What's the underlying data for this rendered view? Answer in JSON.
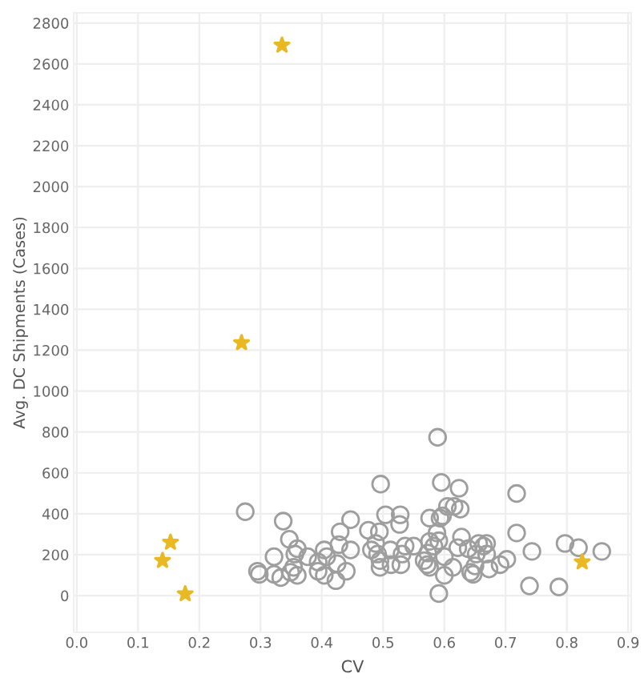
{
  "chart_data": {
    "type": "scatter",
    "xlabel": "CV",
    "ylabel": "Avg. DC Shipments (Cases)",
    "xlim": [
      -0.005,
      0.905
    ],
    "ylim": [
      -180,
      2850
    ],
    "xticks": [
      {
        "value": 0,
        "label": "0.0"
      },
      0.1,
      0.2,
      0.3,
      0.4,
      0.5,
      0.6,
      0.7,
      0.8,
      0.9
    ],
    "yticks": [
      0,
      200,
      400,
      600,
      800,
      1000,
      1200,
      1400,
      1600,
      1800,
      2000,
      2200,
      2400,
      2600,
      2800
    ],
    "grid": true,
    "series": [
      {
        "color": "#9e9e9e",
        "marker": "circle",
        "x": [
          0.275,
          0.295,
          0.298,
          0.322,
          0.322,
          0.333,
          0.337,
          0.347,
          0.356,
          0.36,
          0.354,
          0.36,
          0.349,
          0.377,
          0.394,
          0.394,
          0.404,
          0.408,
          0.404,
          0.423,
          0.425,
          0.43,
          0.428,
          0.44,
          0.447,
          0.447,
          0.476,
          0.481,
          0.494,
          0.488,
          0.491,
          0.495,
          0.495,
          0.496,
          0.504,
          0.512,
          0.513,
          0.528,
          0.527,
          0.529,
          0.531,
          0.536,
          0.55,
          0.567,
          0.572,
          0.573,
          0.576,
          0.576,
          0.576,
          0.583,
          0.588,
          0.591,
          0.589,
          0.595,
          0.593,
          0.591,
          0.597,
          0.6,
          0.6,
          0.605,
          0.614,
          0.616,
          0.624,
          0.626,
          0.622,
          0.628,
          0.639,
          0.643,
          0.647,
          0.65,
          0.652,
          0.656,
          0.664,
          0.669,
          0.669,
          0.673,
          0.691,
          0.702,
          0.718,
          0.718,
          0.743,
          0.739,
          0.787,
          0.797,
          0.819,
          0.857
        ],
        "values": [
          410,
          119,
          104,
          190,
          104,
          88,
          364,
          275,
          203,
          229,
          138,
          99,
          114,
          190,
          119,
          164,
          223,
          190,
          99,
          73,
          156,
          312,
          249,
          119,
          371,
          223,
          319,
          223,
          312,
          255,
          203,
          138,
          171,
          545,
          395,
          223,
          151,
          395,
          348,
          151,
          203,
          242,
          242,
          171,
          151,
          208,
          379,
          265,
          138,
          242,
          306,
          268,
          774,
          553,
          379,
          10,
          390,
          190,
          99,
          436,
          138,
          436,
          525,
          423,
          234,
          286,
          229,
          114,
          104,
          145,
          203,
          255,
          242,
          203,
          255,
          130,
          151,
          177,
          499,
          306,
          216,
          47,
          42,
          255,
          234,
          216
        ]
      },
      {
        "color": "#e8b923",
        "marker": "star",
        "x": [
          0.335,
          0.269,
          0.153,
          0.14,
          0.177,
          0.825
        ],
        "values": [
          2691,
          1236,
          260,
          171,
          8,
          164
        ]
      }
    ]
  }
}
